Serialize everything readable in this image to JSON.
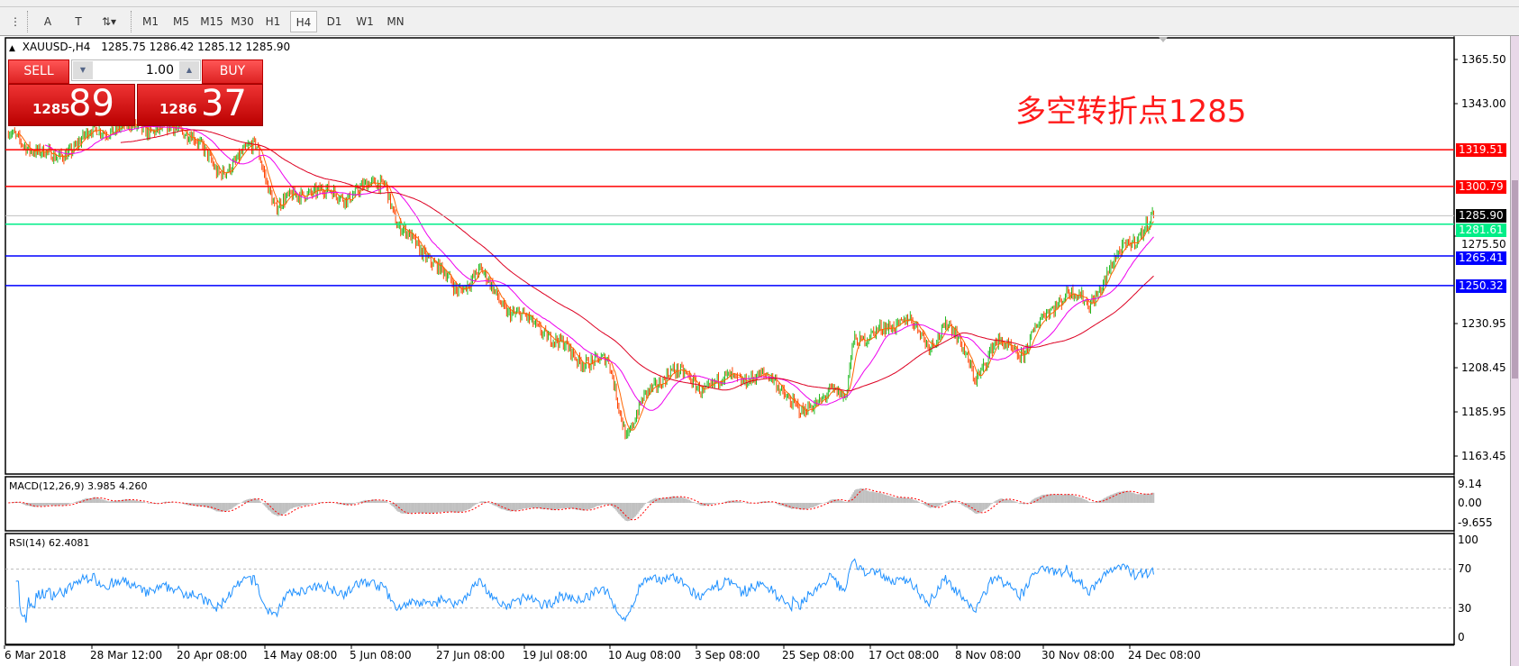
{
  "toolbar": {
    "tools": [
      {
        "name": "period-separator-icon",
        "glyph": "⋮"
      },
      {
        "name": "text-icon",
        "glyph": "A"
      },
      {
        "name": "text-label-icon",
        "glyph": "T"
      },
      {
        "name": "arrows-icon",
        "glyph": "⇅▾"
      }
    ],
    "timeframes": [
      "M1",
      "M5",
      "M15",
      "M30",
      "H1",
      "H4",
      "D1",
      "W1",
      "MN"
    ],
    "selected": "H4"
  },
  "header": {
    "triangle": "▲",
    "symbol": "XAUUSD-,H4",
    "ohlc": "1285.75 1286.42 1285.12 1285.90"
  },
  "trade": {
    "sell_label": "SELL",
    "buy_label": "BUY",
    "lot": "1.00",
    "sell_big": "1285",
    "sell_small": "89",
    "buy_big": "1286",
    "buy_small": "37"
  },
  "annotation": "多空转折点1285",
  "chart_data": [
    {
      "type": "candlestick",
      "symbol": "XAUUSD-",
      "timeframe": "H4",
      "ylim": [
        1152,
        1378
      ],
      "y_ticks": [
        "1365.50",
        "1343.00",
        "1275.50",
        "1230.95",
        "1208.45",
        "1185.95",
        "1163.45"
      ],
      "x_ticks": [
        {
          "label": "6 Mar 2018",
          "date": "2018-03-06T00:00"
        },
        {
          "label": "28 Mar 12:00",
          "date": "2018-03-28T12:00"
        },
        {
          "label": "20 Apr 08:00",
          "date": "2018-04-20T08:00"
        },
        {
          "label": "14 May 08:00",
          "date": "2018-05-14T08:00"
        },
        {
          "label": "5 Jun 08:00",
          "date": "2018-06-05T08:00"
        },
        {
          "label": "27 Jun 08:00",
          "date": "2018-06-27T08:00"
        },
        {
          "label": "19 Jul 08:00",
          "date": "2018-07-19T08:00"
        },
        {
          "label": "10 Aug 08:00",
          "date": "2018-08-10T08:00"
        },
        {
          "label": "3 Sep 08:00",
          "date": "2018-09-03T08:00"
        },
        {
          "label": "25 Sep 08:00",
          "date": "2018-09-25T08:00"
        },
        {
          "label": "17 Oct 08:00",
          "date": "2018-10-17T08:00"
        },
        {
          "label": "8 Nov 08:00",
          "date": "2018-11-08T08:00"
        },
        {
          "label": "30 Nov 08:00",
          "date": "2018-11-30T08:00"
        },
        {
          "label": "24 Dec 08:00",
          "date": "2018-12-24T08:00"
        }
      ],
      "close_path": [
        [
          "2018-03-07",
          1327
        ],
        [
          "2018-03-19",
          1314.5
        ],
        [
          "2018-03-29",
          1329
        ],
        [
          "2018-04-06",
          1331
        ],
        [
          "2018-04-24",
          1329
        ],
        [
          "2018-05-01",
          1307
        ],
        [
          "2018-05-12",
          1322
        ],
        [
          "2018-05-17",
          1290
        ],
        [
          "2018-05-25",
          1299
        ],
        [
          "2018-06-04",
          1296
        ],
        [
          "2018-06-14",
          1304
        ],
        [
          "2018-06-17",
          1280
        ],
        [
          "2018-06-24",
          1267.5
        ],
        [
          "2018-07-02",
          1248
        ],
        [
          "2018-07-08",
          1257.6
        ],
        [
          "2018-07-15",
          1238
        ],
        [
          "2018-07-24",
          1228
        ],
        [
          "2018-08-02",
          1213
        ],
        [
          "2018-08-10",
          1210.8
        ],
        [
          "2018-08-15",
          1173.6
        ],
        [
          "2018-08-20",
          1193
        ],
        [
          "2018-08-27",
          1208
        ],
        [
          "2018-09-05",
          1198
        ],
        [
          "2018-09-12",
          1203.4
        ],
        [
          "2018-09-23",
          1203
        ],
        [
          "2018-09-30",
          1183.7
        ],
        [
          "2018-10-07",
          1198
        ],
        [
          "2018-10-11",
          1191
        ],
        [
          "2018-10-13",
          1223
        ],
        [
          "2018-10-22",
          1228
        ],
        [
          "2018-10-27",
          1235.5
        ],
        [
          "2018-11-01",
          1218
        ],
        [
          "2018-11-06",
          1233
        ],
        [
          "2018-11-13",
          1203.4
        ],
        [
          "2018-11-18",
          1220.6
        ],
        [
          "2018-11-25",
          1215.8
        ],
        [
          "2018-11-30",
          1233
        ],
        [
          "2018-12-07",
          1248
        ],
        [
          "2018-12-13",
          1240
        ],
        [
          "2018-12-20",
          1262.6
        ],
        [
          "2018-12-27",
          1277.4
        ],
        [
          "2018-12-31",
          1286.2
        ]
      ],
      "bull_color": "#22bb22",
      "bear_color": "#ff4400",
      "moving_averages": [
        {
          "color": "#ff6600"
        },
        {
          "color": "#ee00ee"
        },
        {
          "color": "#dd0022"
        }
      ],
      "horizontal_lines": [
        {
          "value": "1319.51",
          "color": "#ff0000"
        },
        {
          "value": "1300.79",
          "color": "#ff0000"
        },
        {
          "value": "1285.90",
          "color": "#000000",
          "line": "#c0c0c0"
        },
        {
          "value": "1281.61",
          "color": "#00ee88"
        },
        {
          "value": "1265.41",
          "color": "#0000ff"
        },
        {
          "value": "1250.32",
          "color": "#0000ff"
        }
      ]
    },
    {
      "type": "histogram",
      "label": "MACD(12,26,9) 3.985 4.260",
      "ylim": [
        -9.655,
        9.14
      ],
      "y_ticks": [
        "9.14",
        "0.00",
        "-9.655"
      ],
      "histogram_color": "#c0c0c0",
      "signal_color": "#ff0000"
    },
    {
      "type": "line",
      "label": "RSI(14) 62.4081",
      "ylim": [
        0,
        100
      ],
      "y_ticks": [
        "100",
        "70",
        "30",
        "0"
      ],
      "levels": [
        70,
        30
      ],
      "color": "#1e90ff"
    }
  ]
}
